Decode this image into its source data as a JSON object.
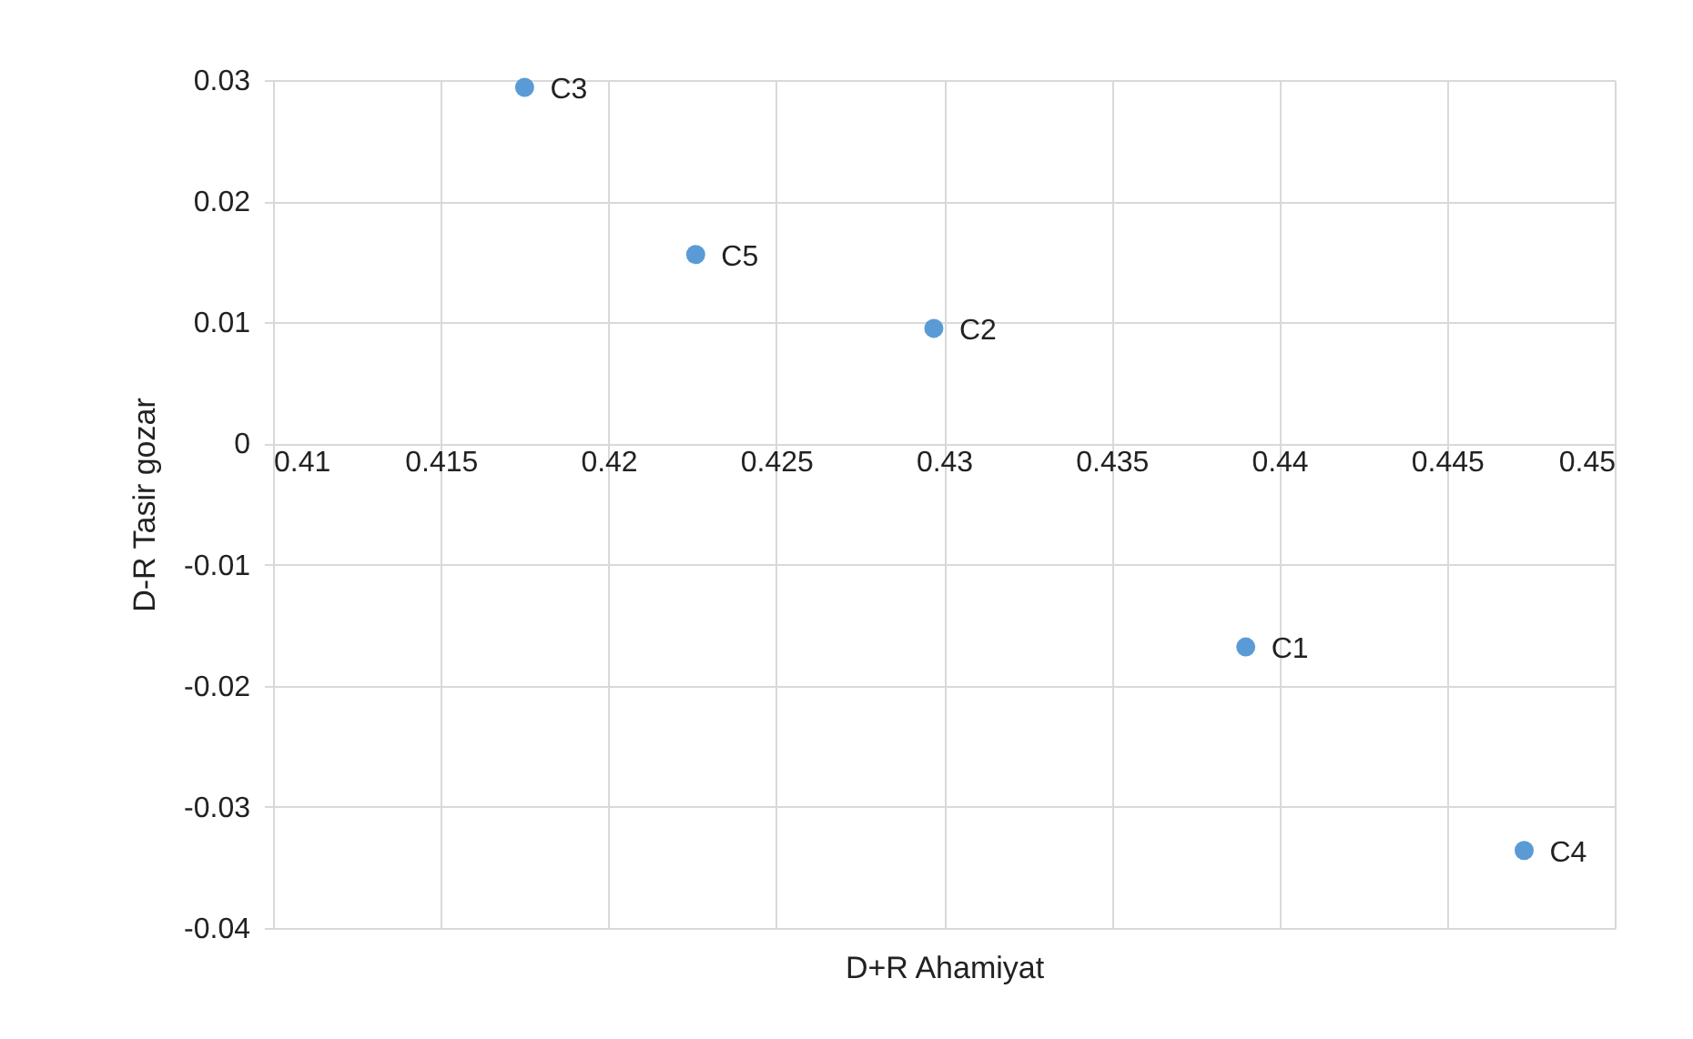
{
  "chart_data": {
    "type": "scatter",
    "xlabel": "D+R Ahamiyat",
    "ylabel": "D-R Tasir gozar",
    "x": [
      0.439,
      0.4297,
      0.4175,
      0.4473,
      0.4226
    ],
    "series": [
      {
        "color": "#5b9bd5",
        "values": [
          -0.0168,
          0.0095,
          0.0294,
          -0.0336,
          0.0156
        ]
      }
    ],
    "annotations": [
      {
        "text": "C1",
        "x": 0.439,
        "y": -0.0168
      },
      {
        "text": "C2",
        "x": 0.4297,
        "y": 0.0095
      },
      {
        "text": "C3",
        "x": 0.4175,
        "y": 0.0294
      },
      {
        "text": "C4",
        "x": 0.4473,
        "y": -0.0336
      },
      {
        "text": "C5",
        "x": 0.4226,
        "y": 0.0156
      }
    ],
    "xlim": [
      0.41,
      0.45
    ],
    "xticks": [
      0.41,
      0.415,
      0.42,
      0.425,
      0.43,
      0.435,
      0.44,
      0.445,
      0.45
    ],
    "ylim": [
      -0.04,
      0.03
    ],
    "yticks": [
      -0.04,
      -0.03,
      -0.02,
      -0.01,
      0,
      0.01,
      0.02,
      0.03
    ],
    "grid": true,
    "marker": "circle",
    "legend": false
  }
}
